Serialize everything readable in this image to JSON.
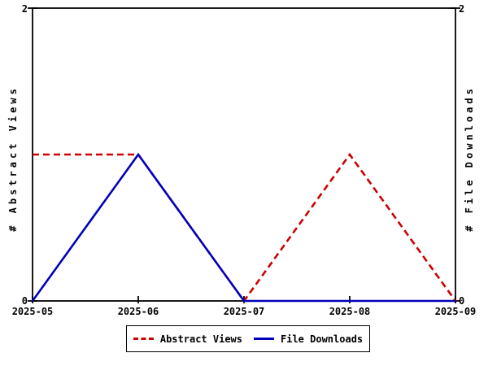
{
  "chart_data": {
    "type": "line",
    "title": "",
    "categories": [
      "2025-05",
      "2025-06",
      "2025-07",
      "2025-08",
      "2025-09"
    ],
    "series": [
      {
        "name": "Abstract Views",
        "values": [
          1,
          1,
          0,
          1,
          0
        ],
        "color": "#cc0000",
        "line_style": "dashed",
        "axis": "left"
      },
      {
        "name": "File Downloads",
        "values": [
          0,
          1,
          0,
          0,
          0
        ],
        "color": "#0000bb",
        "line_style": "solid",
        "axis": "right"
      }
    ],
    "ylim": [
      0,
      2
    ],
    "ylabel_left": "# Abstract Views",
    "ylabel_right": "# File Downloads",
    "ytick_labels": {
      "top": "2",
      "bottom": "0"
    },
    "grid": false,
    "legend_position": "bottom-center",
    "frame_color": "#000000"
  }
}
